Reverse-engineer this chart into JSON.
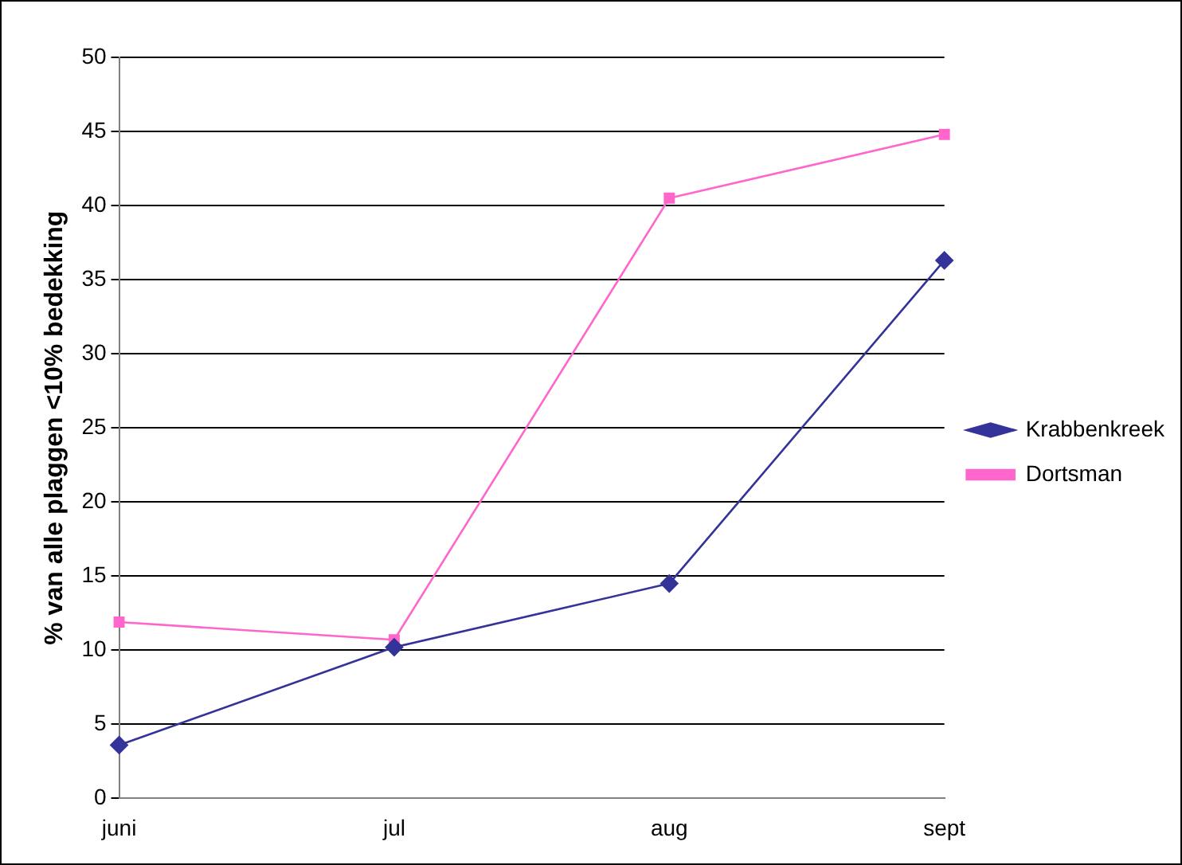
{
  "chart_data": {
    "type": "line",
    "ylabel": "% van alle plaggen <10% bedekking",
    "categories": [
      "juni",
      "jul",
      "aug",
      "sept"
    ],
    "series": [
      {
        "name": "Krabbenkreek",
        "color": "#333399",
        "marker": "diamond",
        "values": [
          3.6,
          10.2,
          14.5,
          36.3
        ]
      },
      {
        "name": "Dortsman",
        "color": "#ff66cc",
        "marker": "square",
        "values": [
          11.9,
          10.7,
          40.5,
          44.8
        ]
      }
    ],
    "ylim": [
      0,
      50
    ],
    "yticks": [
      0,
      5,
      10,
      15,
      20,
      25,
      30,
      35,
      40,
      45,
      50
    ],
    "grid": "y",
    "legend": "right",
    "line_style": "solid"
  }
}
